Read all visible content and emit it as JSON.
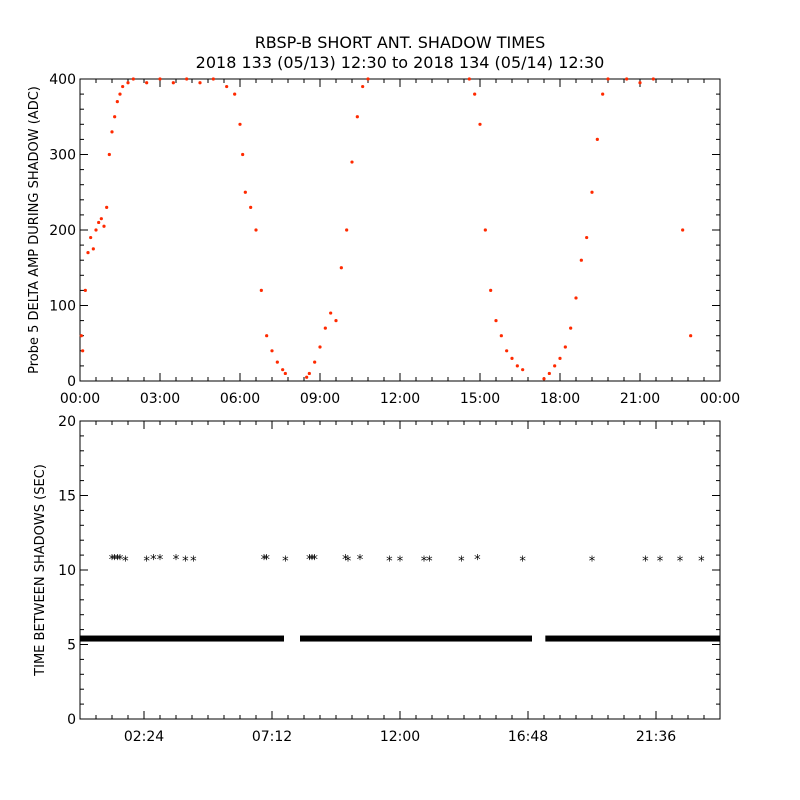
{
  "title_line1": "RBSP-B SHORT ANT. SHADOW TIMES",
  "title_line2": "2018 133 (05/13) 12:30 to 2018 134 (05/14) 12:30",
  "chart_data": [
    {
      "type": "scatter",
      "ylabel": "Probe 5 DELTA AMP DURING SHADOW (ADC)",
      "xlim_hours": [
        0,
        24
      ],
      "ylim": [
        0,
        400
      ],
      "x_ticks": [
        {
          "hour": 0,
          "label": "00:00"
        },
        {
          "hour": 3,
          "label": "03:00"
        },
        {
          "hour": 6,
          "label": "06:00"
        },
        {
          "hour": 9,
          "label": "09:00"
        },
        {
          "hour": 12,
          "label": "12:00"
        },
        {
          "hour": 15,
          "label": "15:00"
        },
        {
          "hour": 18,
          "label": "18:00"
        },
        {
          "hour": 21,
          "label": "21:00"
        },
        {
          "hour": 24,
          "label": "00:00"
        }
      ],
      "y_ticks": [
        0,
        100,
        200,
        300,
        400
      ],
      "series": [
        {
          "color": "#ff2a00",
          "points": [
            [
              0.05,
              60
            ],
            [
              0.1,
              40
            ],
            [
              0.2,
              120
            ],
            [
              0.3,
              170
            ],
            [
              0.4,
              190
            ],
            [
              0.5,
              175
            ],
            [
              0.6,
              200
            ],
            [
              0.7,
              210
            ],
            [
              0.8,
              215
            ],
            [
              0.9,
              205
            ],
            [
              1.0,
              230
            ],
            [
              1.1,
              300
            ],
            [
              1.2,
              330
            ],
            [
              1.3,
              350
            ],
            [
              1.4,
              370
            ],
            [
              1.5,
              380
            ],
            [
              1.6,
              390
            ],
            [
              1.8,
              395
            ],
            [
              2.0,
              400
            ],
            [
              2.5,
              395
            ],
            [
              3.0,
              400
            ],
            [
              3.5,
              395
            ],
            [
              4.0,
              400
            ],
            [
              4.5,
              395
            ],
            [
              5.0,
              400
            ],
            [
              5.5,
              390
            ],
            [
              5.8,
              380
            ],
            [
              6.0,
              340
            ],
            [
              6.1,
              300
            ],
            [
              6.2,
              250
            ],
            [
              6.4,
              230
            ],
            [
              6.6,
              200
            ],
            [
              6.8,
              120
            ],
            [
              7.0,
              60
            ],
            [
              7.2,
              40
            ],
            [
              7.4,
              25
            ],
            [
              7.6,
              15
            ],
            [
              7.7,
              10
            ],
            [
              8.5,
              5
            ],
            [
              8.6,
              10
            ],
            [
              8.8,
              25
            ],
            [
              9.0,
              45
            ],
            [
              9.2,
              70
            ],
            [
              9.4,
              90
            ],
            [
              9.6,
              80
            ],
            [
              9.8,
              150
            ],
            [
              10.0,
              200
            ],
            [
              10.2,
              290
            ],
            [
              10.4,
              350
            ],
            [
              10.6,
              390
            ],
            [
              10.8,
              400
            ],
            [
              14.6,
              400
            ],
            [
              14.8,
              380
            ],
            [
              15.0,
              340
            ],
            [
              15.2,
              200
            ],
            [
              15.4,
              120
            ],
            [
              15.6,
              80
            ],
            [
              15.8,
              60
            ],
            [
              16.0,
              40
            ],
            [
              16.2,
              30
            ],
            [
              16.4,
              20
            ],
            [
              16.6,
              15
            ],
            [
              17.4,
              3
            ],
            [
              17.6,
              10
            ],
            [
              17.8,
              20
            ],
            [
              18.0,
              30
            ],
            [
              18.2,
              45
            ],
            [
              18.4,
              70
            ],
            [
              18.6,
              110
            ],
            [
              18.8,
              160
            ],
            [
              19.0,
              190
            ],
            [
              19.2,
              250
            ],
            [
              19.4,
              320
            ],
            [
              19.6,
              380
            ],
            [
              19.8,
              400
            ],
            [
              20.5,
              400
            ],
            [
              21.0,
              395
            ],
            [
              21.5,
              400
            ],
            [
              22.6,
              200
            ],
            [
              22.9,
              60
            ]
          ]
        }
      ]
    },
    {
      "type": "scatter",
      "ylabel": "TIME BETWEEN SHADOWS (SEC)",
      "xlim_hours": [
        0,
        24
      ],
      "ylim": [
        0,
        20
      ],
      "x_ticks": [
        {
          "hour": 2.4,
          "label": "02:24"
        },
        {
          "hour": 7.2,
          "label": "07:12"
        },
        {
          "hour": 12.0,
          "label": "12:00"
        },
        {
          "hour": 16.8,
          "label": "16:48"
        },
        {
          "hour": 21.6,
          "label": "21:36"
        }
      ],
      "y_ticks": [
        0,
        5,
        10,
        15,
        20
      ],
      "baseline_value": 5.4,
      "baseline_segments_hours": [
        [
          0.0,
          7.65
        ],
        [
          8.25,
          16.95
        ],
        [
          17.45,
          24.0
        ]
      ],
      "series": [
        {
          "color": "#000000",
          "marker": "asterisk",
          "points": [
            [
              1.2,
              10.8
            ],
            [
              1.3,
              10.8
            ],
            [
              1.4,
              10.8
            ],
            [
              1.5,
              10.8
            ],
            [
              1.7,
              10.7
            ],
            [
              2.5,
              10.7
            ],
            [
              2.75,
              10.8
            ],
            [
              3.0,
              10.8
            ],
            [
              3.6,
              10.8
            ],
            [
              3.95,
              10.7
            ],
            [
              4.25,
              10.7
            ],
            [
              6.9,
              10.8
            ],
            [
              7.0,
              10.8
            ],
            [
              7.7,
              10.7
            ],
            [
              8.6,
              10.8
            ],
            [
              8.7,
              10.8
            ],
            [
              8.8,
              10.8
            ],
            [
              9.95,
              10.8
            ],
            [
              10.05,
              10.7
            ],
            [
              10.5,
              10.8
            ],
            [
              11.6,
              10.7
            ],
            [
              12.0,
              10.7
            ],
            [
              12.9,
              10.7
            ],
            [
              13.1,
              10.7
            ],
            [
              14.3,
              10.7
            ],
            [
              14.9,
              10.8
            ],
            [
              16.6,
              10.7
            ],
            [
              19.2,
              10.7
            ],
            [
              21.2,
              10.7
            ],
            [
              21.75,
              10.7
            ],
            [
              22.5,
              10.7
            ],
            [
              23.3,
              10.7
            ]
          ]
        }
      ]
    }
  ]
}
